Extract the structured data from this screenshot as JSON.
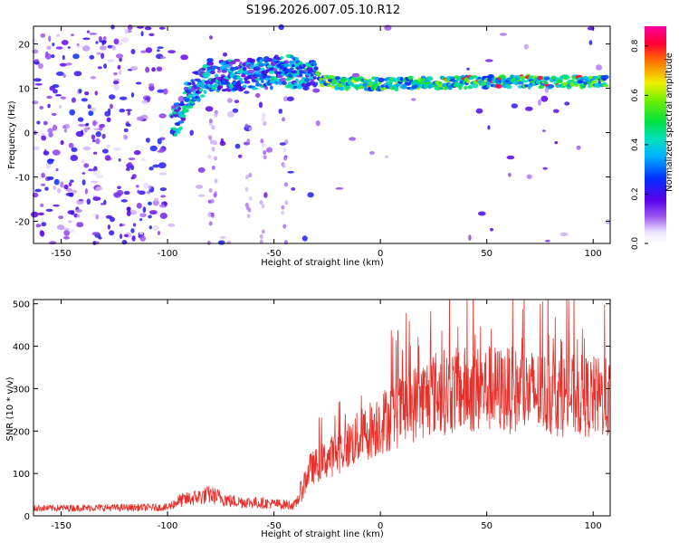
{
  "title": "S196.2026.007.05.10.R12",
  "spectrogram": {
    "type": "heatmap",
    "xlabel": "Height of straight line (km)",
    "ylabel": "Frequency (Hz)",
    "xlim": [
      -163,
      108
    ],
    "ylim": [
      -25,
      24
    ],
    "xticks": [
      -150,
      -100,
      -50,
      0,
      50,
      100
    ],
    "yticks": [
      -20,
      -10,
      0,
      10,
      20
    ],
    "colorbar": {
      "label": "Normalized spectral amplitude",
      "range": [
        0.0,
        0.88
      ],
      "ticks": [
        0.0,
        0.2,
        0.4,
        0.6,
        0.8
      ]
    },
    "ridge": {
      "description_points_x": [
        -95,
        -90,
        -80,
        -60,
        -45,
        -35,
        -20,
        0,
        50,
        105
      ],
      "description_points_y": [
        3,
        9,
        13,
        13,
        14,
        13,
        11,
        11,
        11.5,
        11.5
      ],
      "peak_amplitude": 0.85
    }
  },
  "snr": {
    "type": "line",
    "xlabel": "Height of straight line (km)",
    "ylabel": "SNR (10 * v/v)",
    "xlim": [
      -163,
      108
    ],
    "ylim": [
      0,
      510
    ],
    "xticks": [
      -150,
      -100,
      -50,
      0,
      50,
      100
    ],
    "yticks": [
      0,
      100,
      200,
      300,
      400,
      500
    ],
    "color": "#e8302a",
    "trend": {
      "x": [
        -163,
        -100,
        -95,
        -80,
        -70,
        -40,
        -33,
        -20,
        0,
        25,
        50,
        75,
        100,
        108
      ],
      "y": [
        18,
        20,
        35,
        50,
        35,
        25,
        110,
        150,
        220,
        290,
        300,
        290,
        280,
        275
      ]
    }
  }
}
